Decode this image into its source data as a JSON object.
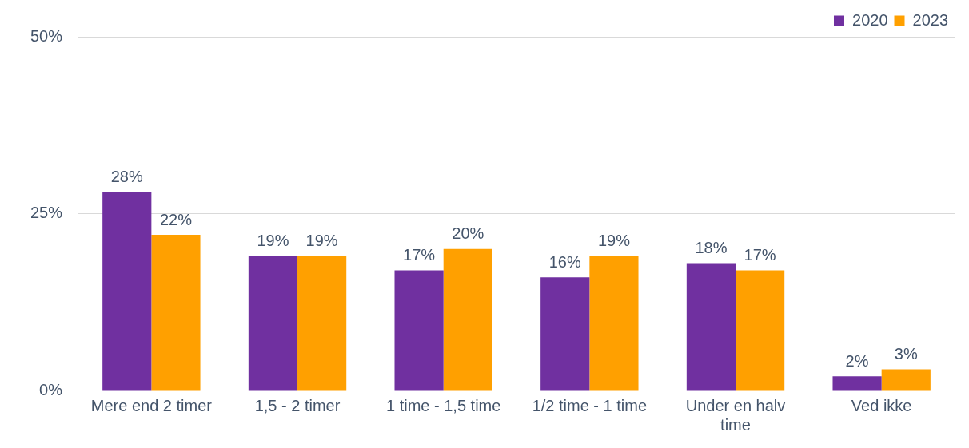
{
  "chart_data": {
    "type": "bar",
    "categories": [
      "Mere end 2 timer",
      "1,5 - 2 timer",
      "1 time - 1,5 time",
      "1/2 time - 1 time",
      "Under en halv time",
      "Ved ikke"
    ],
    "series": [
      {
        "name": "2020",
        "color": "#7030a0",
        "values": [
          28,
          19,
          17,
          16,
          18,
          2
        ],
        "value_labels": [
          "28%",
          "19%",
          "17%",
          "16%",
          "18%",
          "2%"
        ]
      },
      {
        "name": "2023",
        "color": "#ffa000",
        "values": [
          22,
          19,
          20,
          19,
          17,
          3
        ],
        "value_labels": [
          "22%",
          "19%",
          "20%",
          "19%",
          "17%",
          "3%"
        ]
      }
    ],
    "ylim": [
      0,
      50
    ],
    "yticks": [
      {
        "value": 0,
        "label": "0%"
      },
      {
        "value": 25,
        "label": "25%"
      },
      {
        "value": 50,
        "label": "50%"
      }
    ],
    "grid": "y",
    "legend": "top right"
  }
}
